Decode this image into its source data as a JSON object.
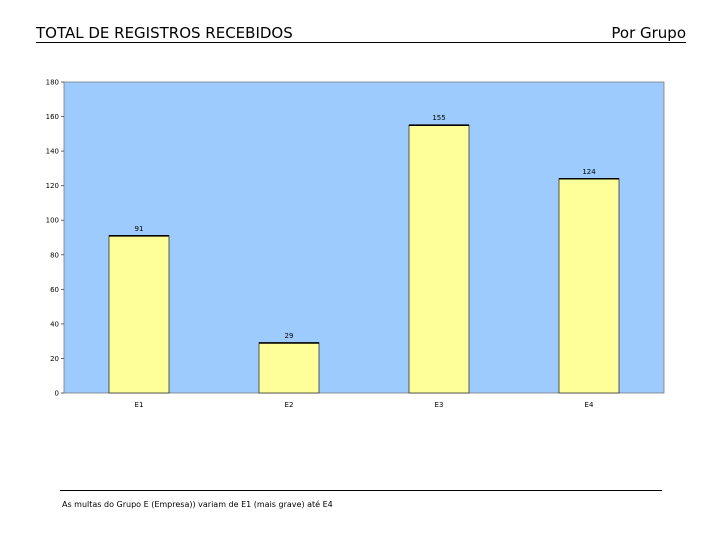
{
  "header": {
    "title": "TOTAL DE REGISTROS RECEBIDOS",
    "right_label": "Por Grupo"
  },
  "chart_data": {
    "type": "bar",
    "categories": [
      "E1",
      "E2",
      "E3",
      "E4"
    ],
    "values": [
      91,
      29,
      155,
      124
    ],
    "value_labels": [
      "91",
      "29",
      "155",
      "124"
    ],
    "ylim": [
      0,
      180
    ],
    "yticks": [
      0,
      20,
      40,
      60,
      80,
      100,
      120,
      140,
      160,
      180
    ],
    "title": "",
    "xlabel": "",
    "ylabel": "",
    "grid": false,
    "legend": "none",
    "plot_background": "#9dcbfd",
    "bar_color": "#ffff99"
  },
  "footnote": "As multas do Grupo E (Empresa)) variam de E1 (mais grave) até E4"
}
